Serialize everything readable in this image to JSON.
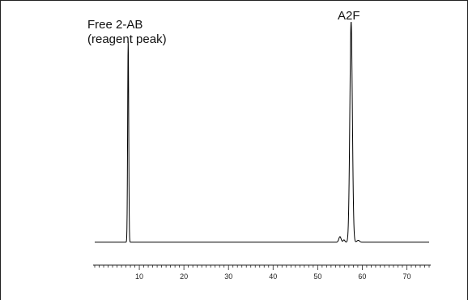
{
  "chart_data": {
    "type": "line",
    "title": "",
    "xlabel": "",
    "ylabel": "",
    "xlim": [
      0,
      75
    ],
    "ylim": [
      0,
      1
    ],
    "grid": false,
    "x_ticks": [
      10,
      20,
      30,
      40,
      50,
      60,
      70
    ],
    "x_minor_step": 1,
    "series": [
      {
        "name": "",
        "color": "#000000",
        "baseline": 0.005,
        "peaks": [
          {
            "x": 7.5,
            "height": 0.91,
            "width": 0.12
          },
          {
            "x": 55.0,
            "height": 0.025,
            "width": 0.25
          },
          {
            "x": 55.9,
            "height": 0.01,
            "width": 0.2
          },
          {
            "x": 57.5,
            "height": 1.0,
            "width": 0.28
          },
          {
            "x": 59.1,
            "height": 0.008,
            "width": 0.3
          }
        ]
      }
    ],
    "annotations": [
      {
        "lines": [
          "Free 2-AB",
          "(reagent peak)"
        ],
        "x": 7.5
      },
      {
        "lines": [
          "A2F"
        ],
        "x": 57.5
      }
    ]
  }
}
